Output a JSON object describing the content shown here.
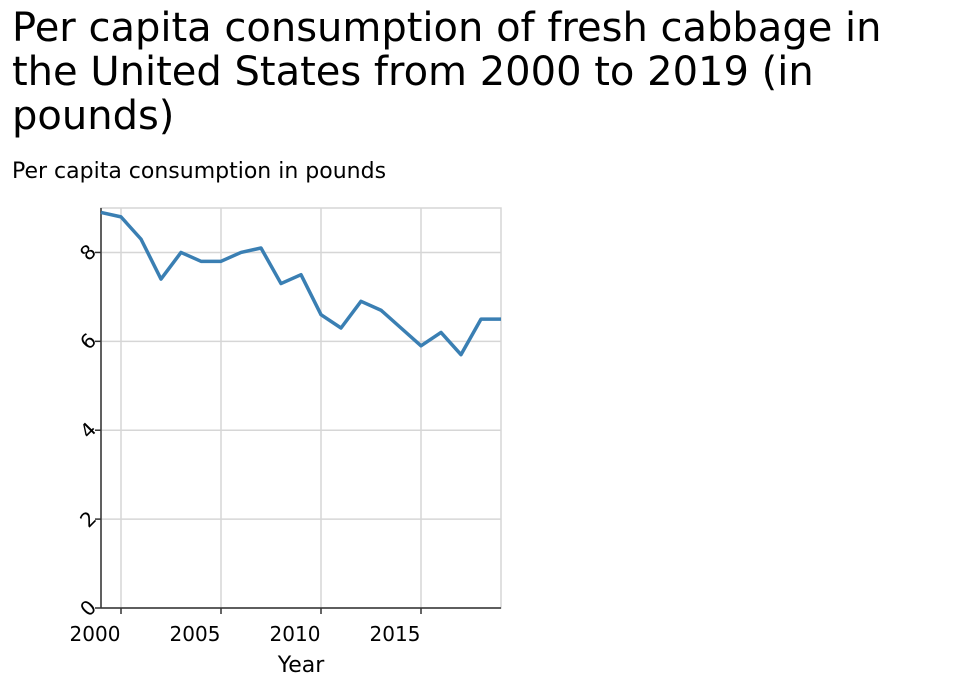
{
  "chart_data": {
    "type": "line",
    "title": "Per capita consumption of fresh cabbage in the United States from 2000 to 2019 (in pounds)",
    "ylabel": "Per capita consumption in pounds",
    "xlabel": "Year",
    "xlim": [
      1999,
      2019
    ],
    "ylim": [
      0,
      9
    ],
    "x_ticks": [
      2000,
      2005,
      2010,
      2015
    ],
    "y_ticks": [
      0,
      2,
      4,
      6,
      8
    ],
    "grid": true,
    "line_color": "#3a7fb3",
    "series": [
      {
        "x": [
          1999,
          2000,
          2001,
          2002,
          2003,
          2004,
          2005,
          2006,
          2007,
          2008,
          2009,
          2010,
          2011,
          2012,
          2013,
          2014,
          2015,
          2016,
          2017,
          2018,
          2019
        ],
        "values": [
          8.9,
          8.8,
          8.3,
          7.4,
          8.0,
          7.8,
          7.8,
          8.0,
          8.1,
          7.3,
          7.5,
          6.6,
          6.3,
          6.9,
          6.7,
          6.3,
          5.9,
          6.2,
          5.7,
          6.5,
          6.5
        ]
      }
    ]
  }
}
